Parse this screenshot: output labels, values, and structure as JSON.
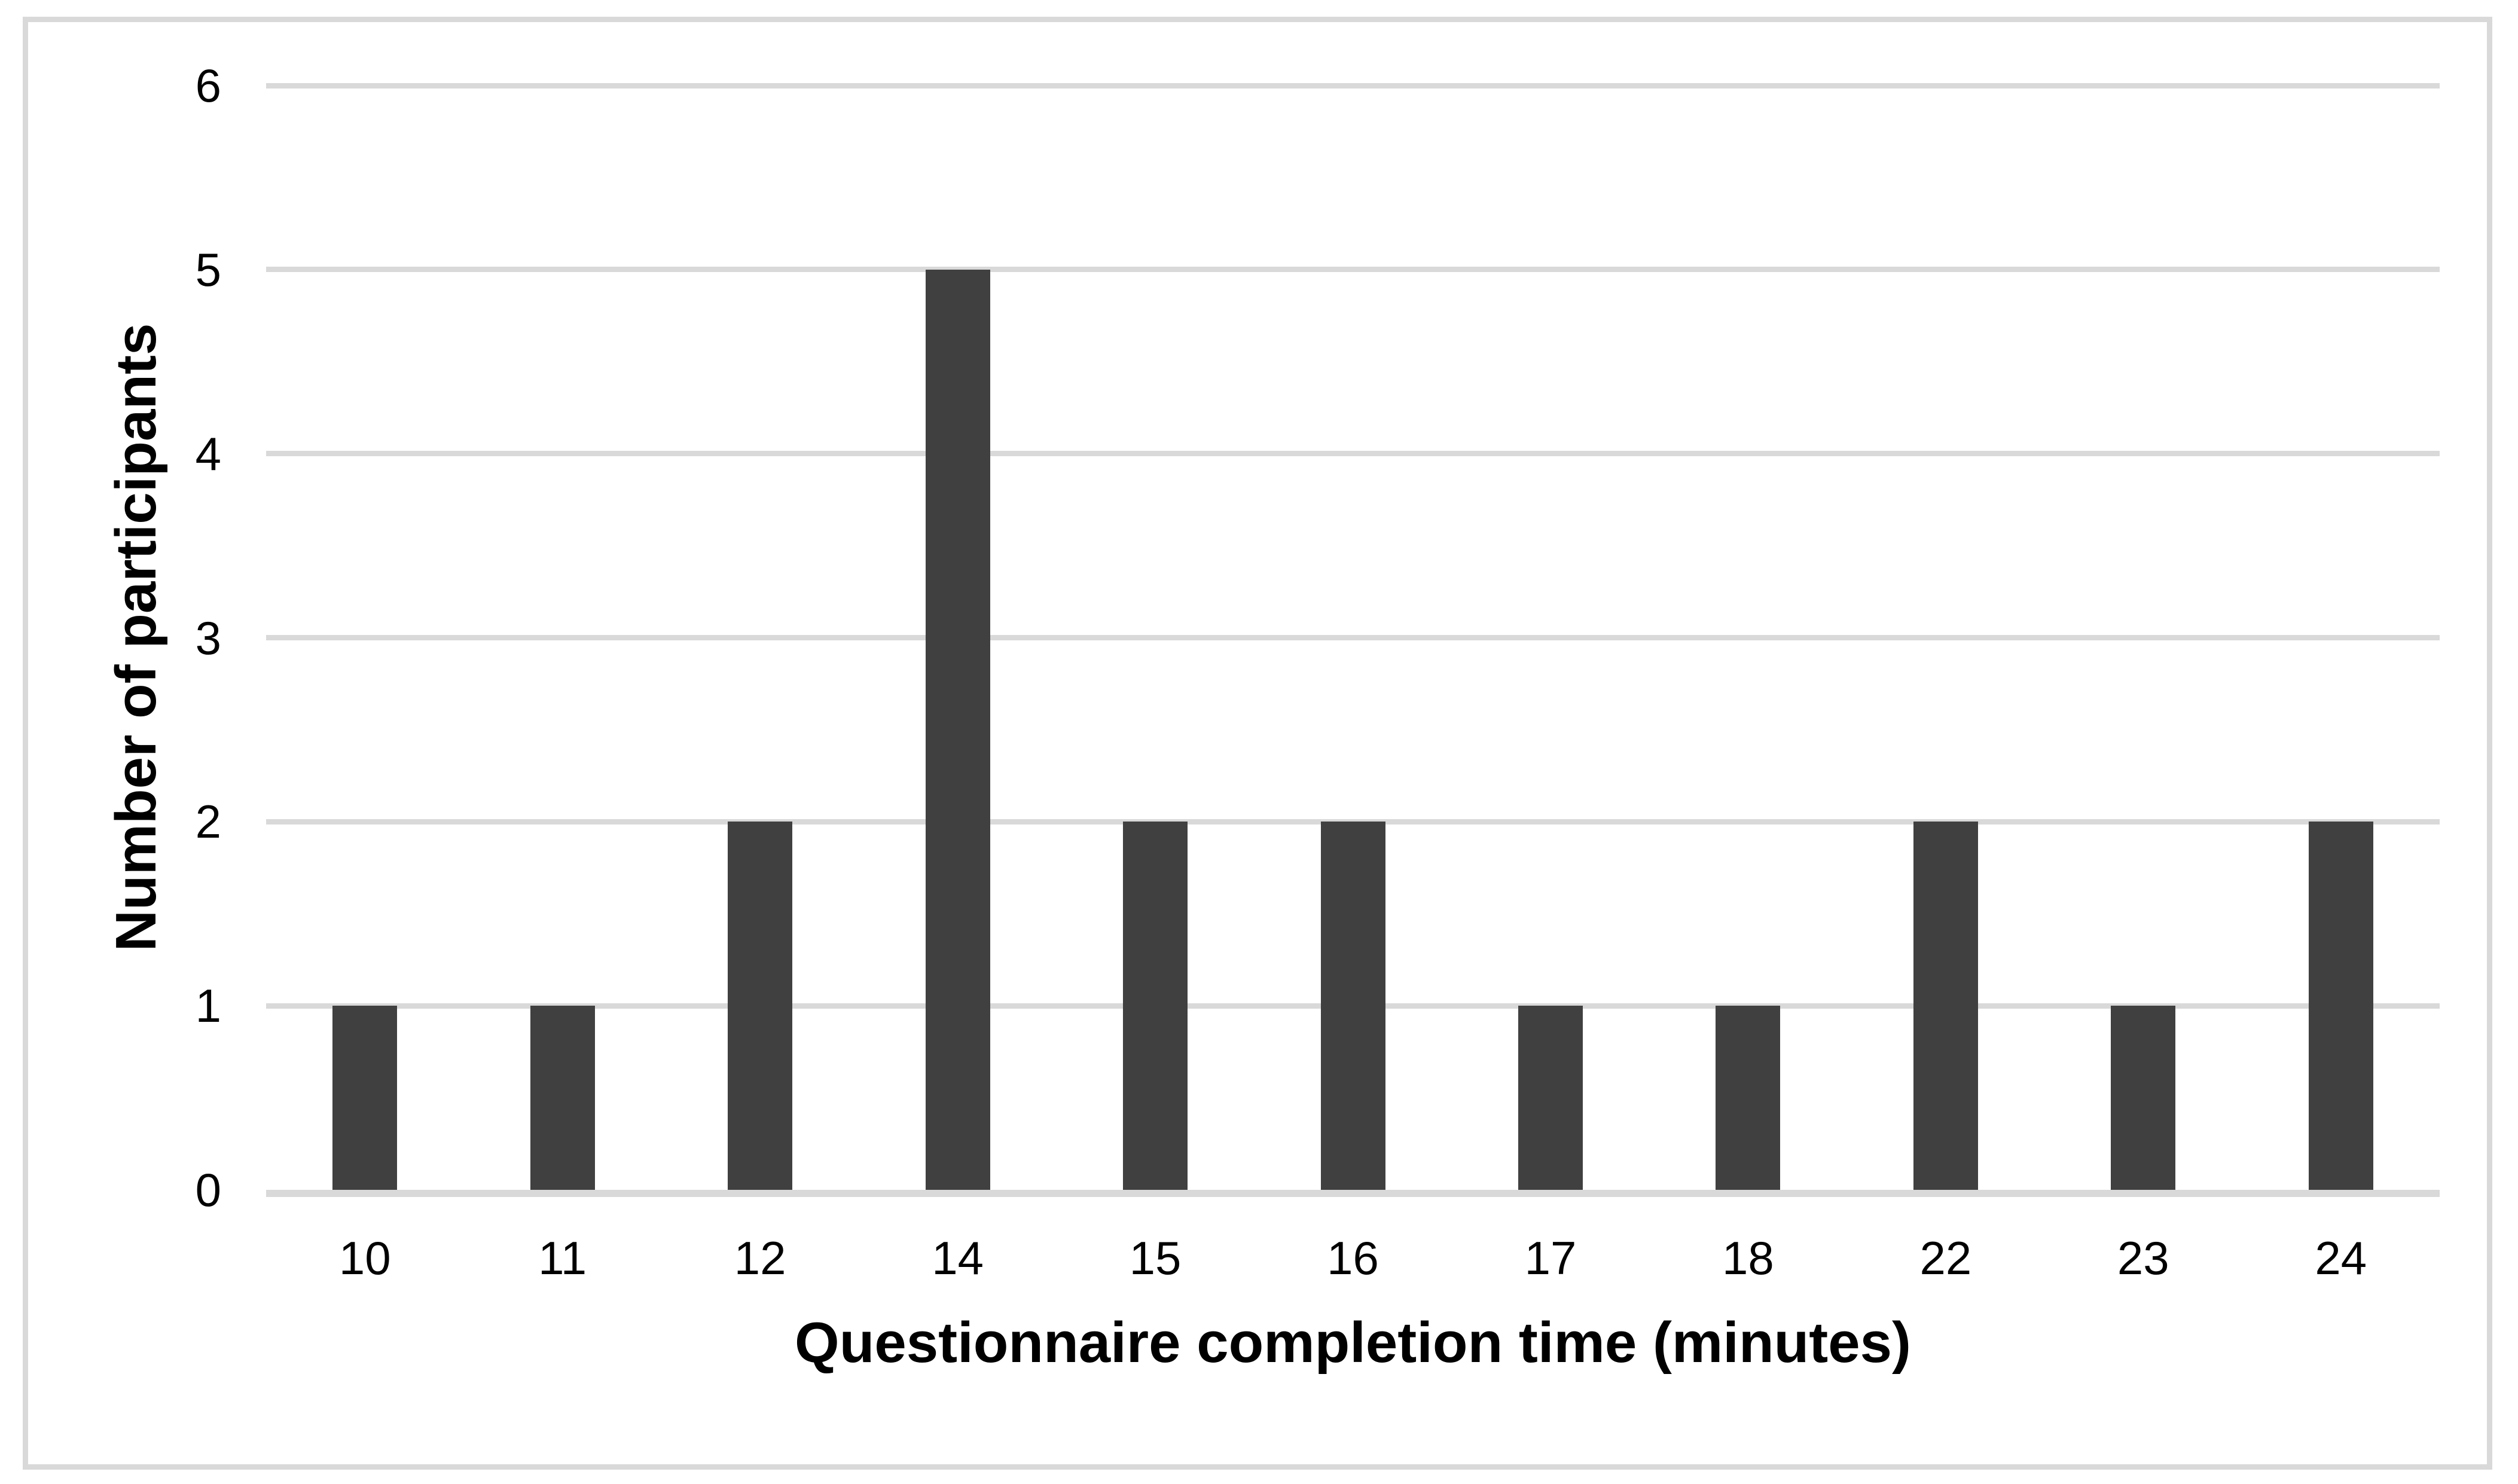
{
  "figure": {
    "background": "#ffffff",
    "border_color": "#d9d9d9"
  },
  "chart_data": {
    "type": "bar",
    "title": "",
    "xlabel": "Questionnaire completion time (minutes)",
    "ylabel": "Number of participants",
    "categories": [
      "10",
      "11",
      "12",
      "14",
      "15",
      "16",
      "17",
      "18",
      "22",
      "23",
      "24"
    ],
    "values": [
      1,
      1,
      2,
      5,
      2,
      2,
      1,
      1,
      2,
      1,
      2
    ],
    "ylim": [
      0,
      6
    ],
    "yticks": [
      0,
      1,
      2,
      3,
      4,
      5,
      6
    ],
    "grid": "horizontal",
    "legend": "none",
    "bar_color": "#404040",
    "gridline_color": "#d9d9d9",
    "axis_line_color": "#d9d9d9",
    "text_color": "#000000"
  }
}
